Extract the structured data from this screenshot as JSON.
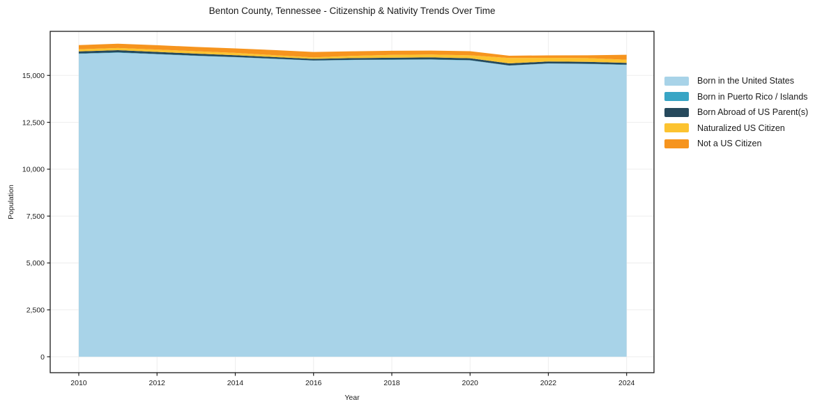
{
  "title": "Benton County, Tennessee - Citizenship & Nativity Trends Over Time",
  "chart_data": {
    "type": "area",
    "stacked": true,
    "title": "Benton County, Tennessee - Citizenship & Nativity Trends Over Time",
    "xlabel": "Year",
    "ylabel": "Population",
    "x": [
      2010,
      2011,
      2012,
      2013,
      2014,
      2015,
      2016,
      2017,
      2018,
      2019,
      2020,
      2021,
      2022,
      2023,
      2024
    ],
    "series": [
      {
        "name": "Born in the United States",
        "color": "#a8d3e8",
        "values": [
          16150,
          16210,
          16130,
          16040,
          15970,
          15880,
          15790,
          15820,
          15830,
          15840,
          15800,
          15520,
          15630,
          15610,
          15560
        ]
      },
      {
        "name": "Born in Puerto Rico / Islands",
        "color": "#38a5c5",
        "values": [
          20,
          20,
          15,
          15,
          10,
          10,
          10,
          10,
          15,
          15,
          15,
          10,
          10,
          15,
          15
        ]
      },
      {
        "name": "Born Abroad of US Parent(s)",
        "color": "#26495c",
        "values": [
          110,
          115,
          110,
          105,
          100,
          90,
          85,
          95,
          100,
          105,
          100,
          110,
          105,
          100,
          95
        ]
      },
      {
        "name": "Naturalized US Citizen",
        "color": "#fcc330",
        "values": [
          115,
          120,
          125,
          130,
          125,
          100,
          75,
          120,
          150,
          155,
          160,
          290,
          195,
          200,
          165
        ]
      },
      {
        "name": "Not a US Citizen",
        "color": "#f6941e",
        "values": [
          220,
          225,
          230,
          230,
          235,
          270,
          290,
          240,
          220,
          210,
          215,
          120,
          130,
          150,
          265
        ]
      }
    ],
    "xticks": [
      2010,
      2012,
      2014,
      2016,
      2018,
      2020,
      2022,
      2024
    ],
    "yticks": [
      0,
      2500,
      5000,
      7500,
      10000,
      12500,
      15000
    ],
    "ytick_labels": [
      "0",
      "2,500",
      "5,000",
      "7,500",
      "10,000",
      "12,500",
      "15,000"
    ],
    "xlim": [
      2009.27,
      2024.7
    ],
    "ylim": [
      -850,
      17350
    ],
    "grid": true,
    "grid_color": "#ededed",
    "axis_color": "#1a1a1a",
    "legend_position": "right"
  }
}
